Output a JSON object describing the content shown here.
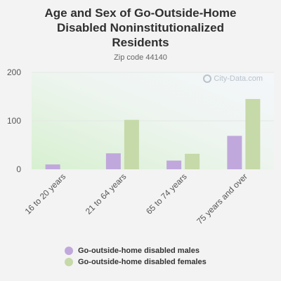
{
  "chart_data": {
    "type": "bar",
    "title": "Age and Sex of Go-Outside-Home Disabled Noninstitutionalized Residents",
    "title_lines": [
      "Age and Sex of Go-Outside-Home",
      "Disabled Noninstitutionalized",
      "Residents"
    ],
    "subtitle": "Zip code 44140",
    "categories": [
      "16 to 20 years",
      "21 to 64 years",
      "65 to 74 years",
      "75 years and over"
    ],
    "series": [
      {
        "name": "Go-outside-home disabled males",
        "color": "#c0a8dc",
        "values": [
          10,
          33,
          18,
          69
        ]
      },
      {
        "name": "Go-outside-home disabled females",
        "color": "#c6d9a8",
        "values": [
          0,
          102,
          32,
          145
        ]
      }
    ],
    "ylim": [
      0,
      200
    ],
    "yticks": [
      "0",
      "100",
      "200"
    ],
    "ytick_values": [
      0,
      100,
      200
    ],
    "grid": true,
    "legend_position": "bottom",
    "watermark": "City-Data.com"
  }
}
